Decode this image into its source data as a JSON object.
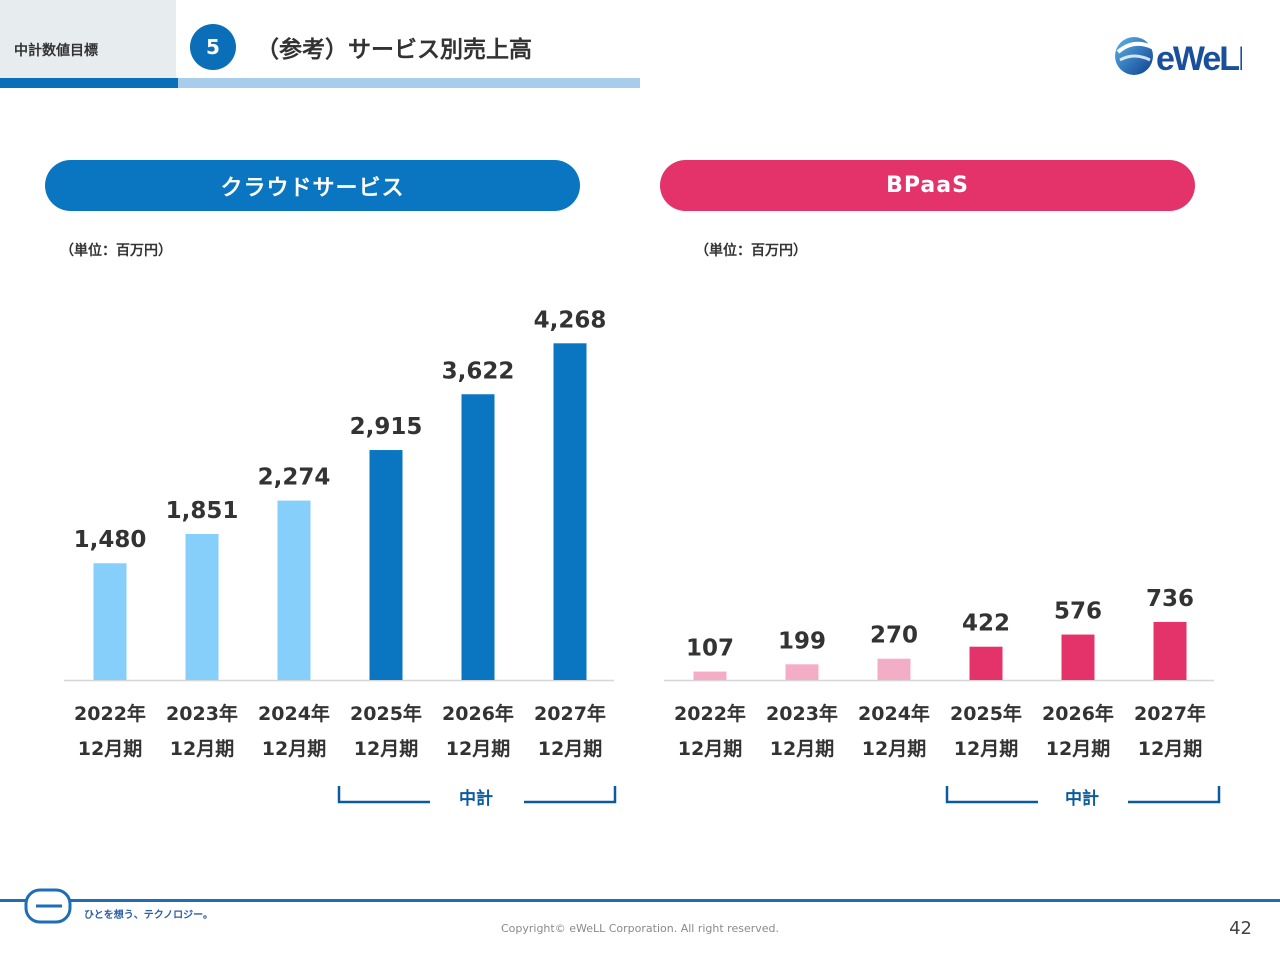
{
  "header": {
    "section_label": "中計数値目標",
    "section_number": "5",
    "title": "（参考）サービス別売上高",
    "logo_text": "eWeLL"
  },
  "colors": {
    "cloud_actual": "#86cffb",
    "cloud_plan": "#0a76c1",
    "bpaas_actual": "#f4adc7",
    "bpaas_plan": "#e4326b",
    "axis": "#d6d6d6",
    "bracket": "#0a5aa0"
  },
  "panels": {
    "cloud": {
      "title": "クラウドサービス",
      "unit": "（単位：百万円）",
      "bracket_label": "中計"
    },
    "bpaas": {
      "title": "BPaaS",
      "unit": "（単位：百万円）",
      "bracket_label": "中計"
    }
  },
  "chart_data": [
    {
      "type": "bar",
      "title": "クラウドサービス",
      "unit": "（単位：百万円）",
      "categories": [
        [
          "2022年",
          "12月期"
        ],
        [
          "2023年",
          "12月期"
        ],
        [
          "2024年",
          "12月期"
        ],
        [
          "2025年",
          "12月期"
        ],
        [
          "2026年",
          "12月期"
        ],
        [
          "2027年",
          "12月期"
        ]
      ],
      "values": [
        1480,
        1851,
        2274,
        2915,
        3622,
        4268
      ],
      "value_labels": [
        "1,480",
        "1,851",
        "2,274",
        "2,915",
        "3,622",
        "4,268"
      ],
      "bar_kind": [
        "actual",
        "actual",
        "actual",
        "plan",
        "plan",
        "plan"
      ],
      "ylim": [
        0,
        4500
      ],
      "grid": false,
      "annotation": "中計"
    },
    {
      "type": "bar",
      "title": "BPaaS",
      "unit": "（単位：百万円）",
      "categories": [
        [
          "2022年",
          "12月期"
        ],
        [
          "2023年",
          "12月期"
        ],
        [
          "2024年",
          "12月期"
        ],
        [
          "2025年",
          "12月期"
        ],
        [
          "2026年",
          "12月期"
        ],
        [
          "2027年",
          "12月期"
        ]
      ],
      "values": [
        107,
        199,
        270,
        422,
        576,
        736
      ],
      "value_labels": [
        "107",
        "199",
        "270",
        "422",
        "576",
        "736"
      ],
      "bar_kind": [
        "actual",
        "actual",
        "actual",
        "plan",
        "plan",
        "plan"
      ],
      "ylim": [
        0,
        4500
      ],
      "grid": false,
      "annotation": "中計"
    }
  ],
  "footer": {
    "tagline": "ひとを想う、テクノロジー。",
    "copyright": "Copyright© eWeLL Corporation. All right reserved.",
    "page_number": "42"
  }
}
